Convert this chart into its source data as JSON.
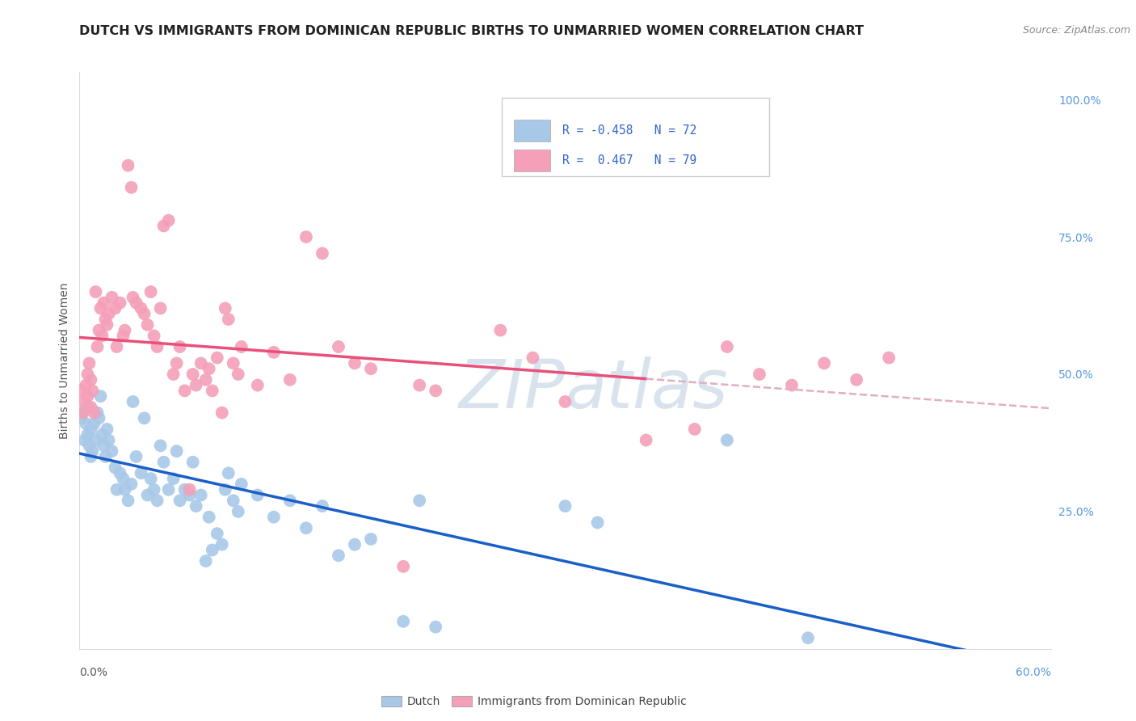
{
  "title": "DUTCH VS IMMIGRANTS FROM DOMINICAN REPUBLIC BIRTHS TO UNMARRIED WOMEN CORRELATION CHART",
  "source": "Source: ZipAtlas.com",
  "ylabel": "Births to Unmarried Women",
  "dutch_R": -0.458,
  "dutch_N": 72,
  "dominican_R": 0.467,
  "dominican_N": 79,
  "dutch_color": "#a8c8e8",
  "dominican_color": "#f4a0b8",
  "dutch_line_color": "#1a5fc8",
  "dominican_line_color": "#e8507a",
  "dominican_dash_color": "#e0b0c0",
  "background_color": "#ffffff",
  "grid_color": "#dddddd",
  "watermark_color": "#c8d8ec",
  "xmin": 0.0,
  "xmax": 0.6,
  "ymin": 0.0,
  "ymax": 1.05,
  "dutch_scatter": [
    [
      0.001,
      0.42
    ],
    [
      0.002,
      0.43
    ],
    [
      0.003,
      0.38
    ],
    [
      0.004,
      0.41
    ],
    [
      0.005,
      0.44
    ],
    [
      0.005,
      0.39
    ],
    [
      0.006,
      0.37
    ],
    [
      0.007,
      0.4
    ],
    [
      0.007,
      0.35
    ],
    [
      0.008,
      0.36
    ],
    [
      0.009,
      0.41
    ],
    [
      0.01,
      0.38
    ],
    [
      0.011,
      0.43
    ],
    [
      0.012,
      0.42
    ],
    [
      0.013,
      0.46
    ],
    [
      0.014,
      0.39
    ],
    [
      0.015,
      0.37
    ],
    [
      0.016,
      0.35
    ],
    [
      0.017,
      0.4
    ],
    [
      0.018,
      0.38
    ],
    [
      0.02,
      0.36
    ],
    [
      0.022,
      0.33
    ],
    [
      0.023,
      0.29
    ],
    [
      0.025,
      0.32
    ],
    [
      0.027,
      0.31
    ],
    [
      0.028,
      0.29
    ],
    [
      0.03,
      0.27
    ],
    [
      0.032,
      0.3
    ],
    [
      0.033,
      0.45
    ],
    [
      0.035,
      0.35
    ],
    [
      0.038,
      0.32
    ],
    [
      0.04,
      0.42
    ],
    [
      0.042,
      0.28
    ],
    [
      0.044,
      0.31
    ],
    [
      0.046,
      0.29
    ],
    [
      0.048,
      0.27
    ],
    [
      0.05,
      0.37
    ],
    [
      0.052,
      0.34
    ],
    [
      0.055,
      0.29
    ],
    [
      0.058,
      0.31
    ],
    [
      0.06,
      0.36
    ],
    [
      0.062,
      0.27
    ],
    [
      0.065,
      0.29
    ],
    [
      0.068,
      0.28
    ],
    [
      0.07,
      0.34
    ],
    [
      0.072,
      0.26
    ],
    [
      0.075,
      0.28
    ],
    [
      0.078,
      0.16
    ],
    [
      0.08,
      0.24
    ],
    [
      0.082,
      0.18
    ],
    [
      0.085,
      0.21
    ],
    [
      0.088,
      0.19
    ],
    [
      0.09,
      0.29
    ],
    [
      0.092,
      0.32
    ],
    [
      0.095,
      0.27
    ],
    [
      0.098,
      0.25
    ],
    [
      0.1,
      0.3
    ],
    [
      0.11,
      0.28
    ],
    [
      0.12,
      0.24
    ],
    [
      0.13,
      0.27
    ],
    [
      0.14,
      0.22
    ],
    [
      0.15,
      0.26
    ],
    [
      0.16,
      0.17
    ],
    [
      0.17,
      0.19
    ],
    [
      0.18,
      0.2
    ],
    [
      0.2,
      0.05
    ],
    [
      0.21,
      0.27
    ],
    [
      0.22,
      0.04
    ],
    [
      0.3,
      0.26
    ],
    [
      0.32,
      0.23
    ],
    [
      0.4,
      0.38
    ],
    [
      0.45,
      0.02
    ]
  ],
  "dominican_scatter": [
    [
      0.001,
      0.47
    ],
    [
      0.002,
      0.43
    ],
    [
      0.003,
      0.45
    ],
    [
      0.004,
      0.48
    ],
    [
      0.005,
      0.5
    ],
    [
      0.005,
      0.46
    ],
    [
      0.006,
      0.52
    ],
    [
      0.007,
      0.44
    ],
    [
      0.007,
      0.49
    ],
    [
      0.008,
      0.47
    ],
    [
      0.009,
      0.43
    ],
    [
      0.01,
      0.65
    ],
    [
      0.011,
      0.55
    ],
    [
      0.012,
      0.58
    ],
    [
      0.013,
      0.62
    ],
    [
      0.014,
      0.57
    ],
    [
      0.015,
      0.63
    ],
    [
      0.016,
      0.6
    ],
    [
      0.017,
      0.59
    ],
    [
      0.018,
      0.61
    ],
    [
      0.02,
      0.64
    ],
    [
      0.022,
      0.62
    ],
    [
      0.023,
      0.55
    ],
    [
      0.025,
      0.63
    ],
    [
      0.027,
      0.57
    ],
    [
      0.028,
      0.58
    ],
    [
      0.03,
      0.88
    ],
    [
      0.032,
      0.84
    ],
    [
      0.033,
      0.64
    ],
    [
      0.035,
      0.63
    ],
    [
      0.038,
      0.62
    ],
    [
      0.04,
      0.61
    ],
    [
      0.042,
      0.59
    ],
    [
      0.044,
      0.65
    ],
    [
      0.046,
      0.57
    ],
    [
      0.048,
      0.55
    ],
    [
      0.05,
      0.62
    ],
    [
      0.052,
      0.77
    ],
    [
      0.055,
      0.78
    ],
    [
      0.058,
      0.5
    ],
    [
      0.06,
      0.52
    ],
    [
      0.062,
      0.55
    ],
    [
      0.065,
      0.47
    ],
    [
      0.068,
      0.29
    ],
    [
      0.07,
      0.5
    ],
    [
      0.072,
      0.48
    ],
    [
      0.075,
      0.52
    ],
    [
      0.078,
      0.49
    ],
    [
      0.08,
      0.51
    ],
    [
      0.082,
      0.47
    ],
    [
      0.085,
      0.53
    ],
    [
      0.088,
      0.43
    ],
    [
      0.09,
      0.62
    ],
    [
      0.092,
      0.6
    ],
    [
      0.095,
      0.52
    ],
    [
      0.098,
      0.5
    ],
    [
      0.1,
      0.55
    ],
    [
      0.11,
      0.48
    ],
    [
      0.12,
      0.54
    ],
    [
      0.13,
      0.49
    ],
    [
      0.14,
      0.75
    ],
    [
      0.15,
      0.72
    ],
    [
      0.16,
      0.55
    ],
    [
      0.17,
      0.52
    ],
    [
      0.18,
      0.51
    ],
    [
      0.2,
      0.15
    ],
    [
      0.21,
      0.48
    ],
    [
      0.22,
      0.47
    ],
    [
      0.26,
      0.58
    ],
    [
      0.28,
      0.53
    ],
    [
      0.3,
      0.45
    ],
    [
      0.35,
      0.38
    ],
    [
      0.38,
      0.4
    ],
    [
      0.4,
      0.55
    ],
    [
      0.42,
      0.5
    ],
    [
      0.44,
      0.48
    ],
    [
      0.46,
      0.52
    ],
    [
      0.48,
      0.49
    ],
    [
      0.5,
      0.53
    ]
  ],
  "legend_R_dutch": "R = -0.458",
  "legend_N_dutch": "N = 72",
  "legend_R_dom": "R =  0.467",
  "legend_N_dom": "N = 79",
  "legend_label_dutch": "Dutch",
  "legend_label_dom": "Immigrants from Dominican Republic"
}
